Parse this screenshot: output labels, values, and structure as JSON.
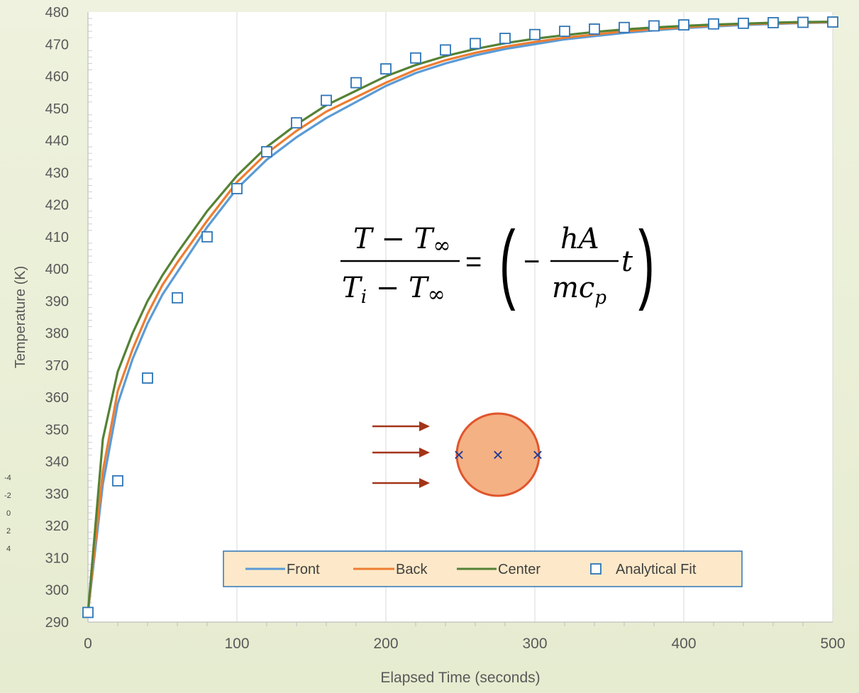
{
  "chart_data": {
    "type": "line",
    "xlabel": "Elapsed Time (seconds)",
    "ylabel": "Temperature (K)",
    "xlim": [
      0,
      500
    ],
    "ylim": [
      290,
      480
    ],
    "x_ticks": [
      0,
      100,
      200,
      300,
      400,
      500
    ],
    "y_ticks": [
      290,
      300,
      310,
      320,
      330,
      340,
      350,
      360,
      370,
      380,
      390,
      400,
      410,
      420,
      430,
      440,
      450,
      460,
      470,
      480
    ],
    "grid": "vertical",
    "legend": "bottom-center",
    "series": [
      {
        "name": "Front",
        "color": "#5b9bd5",
        "style": "line",
        "x": [
          0,
          10,
          20,
          30,
          40,
          50,
          60,
          80,
          100,
          120,
          140,
          160,
          180,
          200,
          220,
          240,
          260,
          280,
          300,
          320,
          340,
          360,
          380,
          400,
          420,
          440,
          460,
          480,
          500
        ],
        "y": [
          293,
          333,
          358,
          372,
          383,
          392,
          399,
          413,
          425,
          434,
          441,
          447,
          452,
          457,
          461,
          464,
          466.5,
          468.5,
          470,
          471.5,
          472.5,
          473.5,
          474.3,
          475,
          475.5,
          476,
          476.3,
          476.6,
          476.8
        ]
      },
      {
        "name": "Back",
        "color": "#ed7d31",
        "style": "line",
        "x": [
          0,
          10,
          20,
          30,
          40,
          50,
          60,
          80,
          100,
          120,
          140,
          160,
          180,
          200,
          220,
          240,
          260,
          280,
          300,
          320,
          340,
          360,
          380,
          400,
          420,
          440,
          460,
          480,
          500
        ],
        "y": [
          293,
          337,
          362,
          375,
          386,
          395,
          402,
          415,
          427,
          436,
          443,
          449,
          453.5,
          458,
          462,
          465,
          467.3,
          469.2,
          470.7,
          472,
          473,
          474,
          474.7,
          475.3,
          475.8,
          476.2,
          476.5,
          476.7,
          476.9
        ]
      },
      {
        "name": "Center",
        "color": "#548235",
        "style": "line",
        "x": [
          0,
          10,
          20,
          30,
          40,
          50,
          60,
          80,
          100,
          120,
          140,
          160,
          180,
          200,
          220,
          240,
          260,
          280,
          300,
          320,
          340,
          360,
          380,
          400,
          420,
          440,
          460,
          480,
          500
        ],
        "y": [
          293,
          347,
          368,
          380,
          390,
          398,
          405,
          418,
          429,
          438,
          445,
          451,
          455.5,
          460,
          463.5,
          466.3,
          468.5,
          470.3,
          471.7,
          472.8,
          473.8,
          474.6,
          475.2,
          475.7,
          476.1,
          476.4,
          476.7,
          476.9,
          477
        ]
      },
      {
        "name": "Analytical Fit",
        "color": "#2e75b6",
        "style": "marker",
        "x": [
          0,
          20,
          40,
          60,
          80,
          100,
          120,
          140,
          160,
          180,
          200,
          220,
          240,
          260,
          280,
          300,
          320,
          340,
          360,
          380,
          400,
          420,
          440,
          460,
          480,
          500
        ],
        "y": [
          293,
          334,
          366,
          391,
          410,
          425,
          436.5,
          445.5,
          452.5,
          458,
          462.3,
          465.7,
          468.2,
          470.2,
          471.8,
          473,
          474,
          474.7,
          475.2,
          475.7,
          476,
          476.3,
          476.5,
          476.7,
          476.8,
          476.9
        ]
      }
    ],
    "equation": {
      "num_left": "T − T",
      "den_left": "T",
      "den_sub": "i",
      "den_rest": " − T",
      "inf": "∞",
      "equals": "=",
      "num_right": "hA",
      "den_right": "mc",
      "den_right_sub": "p",
      "minus": "−",
      "t": "t",
      "lparen": "(",
      "rparen": ")"
    },
    "side_ticks": [
      "-4",
      "-2",
      "0",
      "2",
      "4"
    ],
    "diagram_marker": "×",
    "colors": {
      "plot_bg": "#ffffff",
      "legend_bg": "#fde9c9",
      "legend_border": "#2e75b6",
      "grid": "#d9d9d9",
      "axis_text": "#595959",
      "circle_fill": "#f4b183",
      "circle_stroke": "#e0552d",
      "arrow": "#a33418",
      "marker_x": "#1f3a93"
    }
  }
}
